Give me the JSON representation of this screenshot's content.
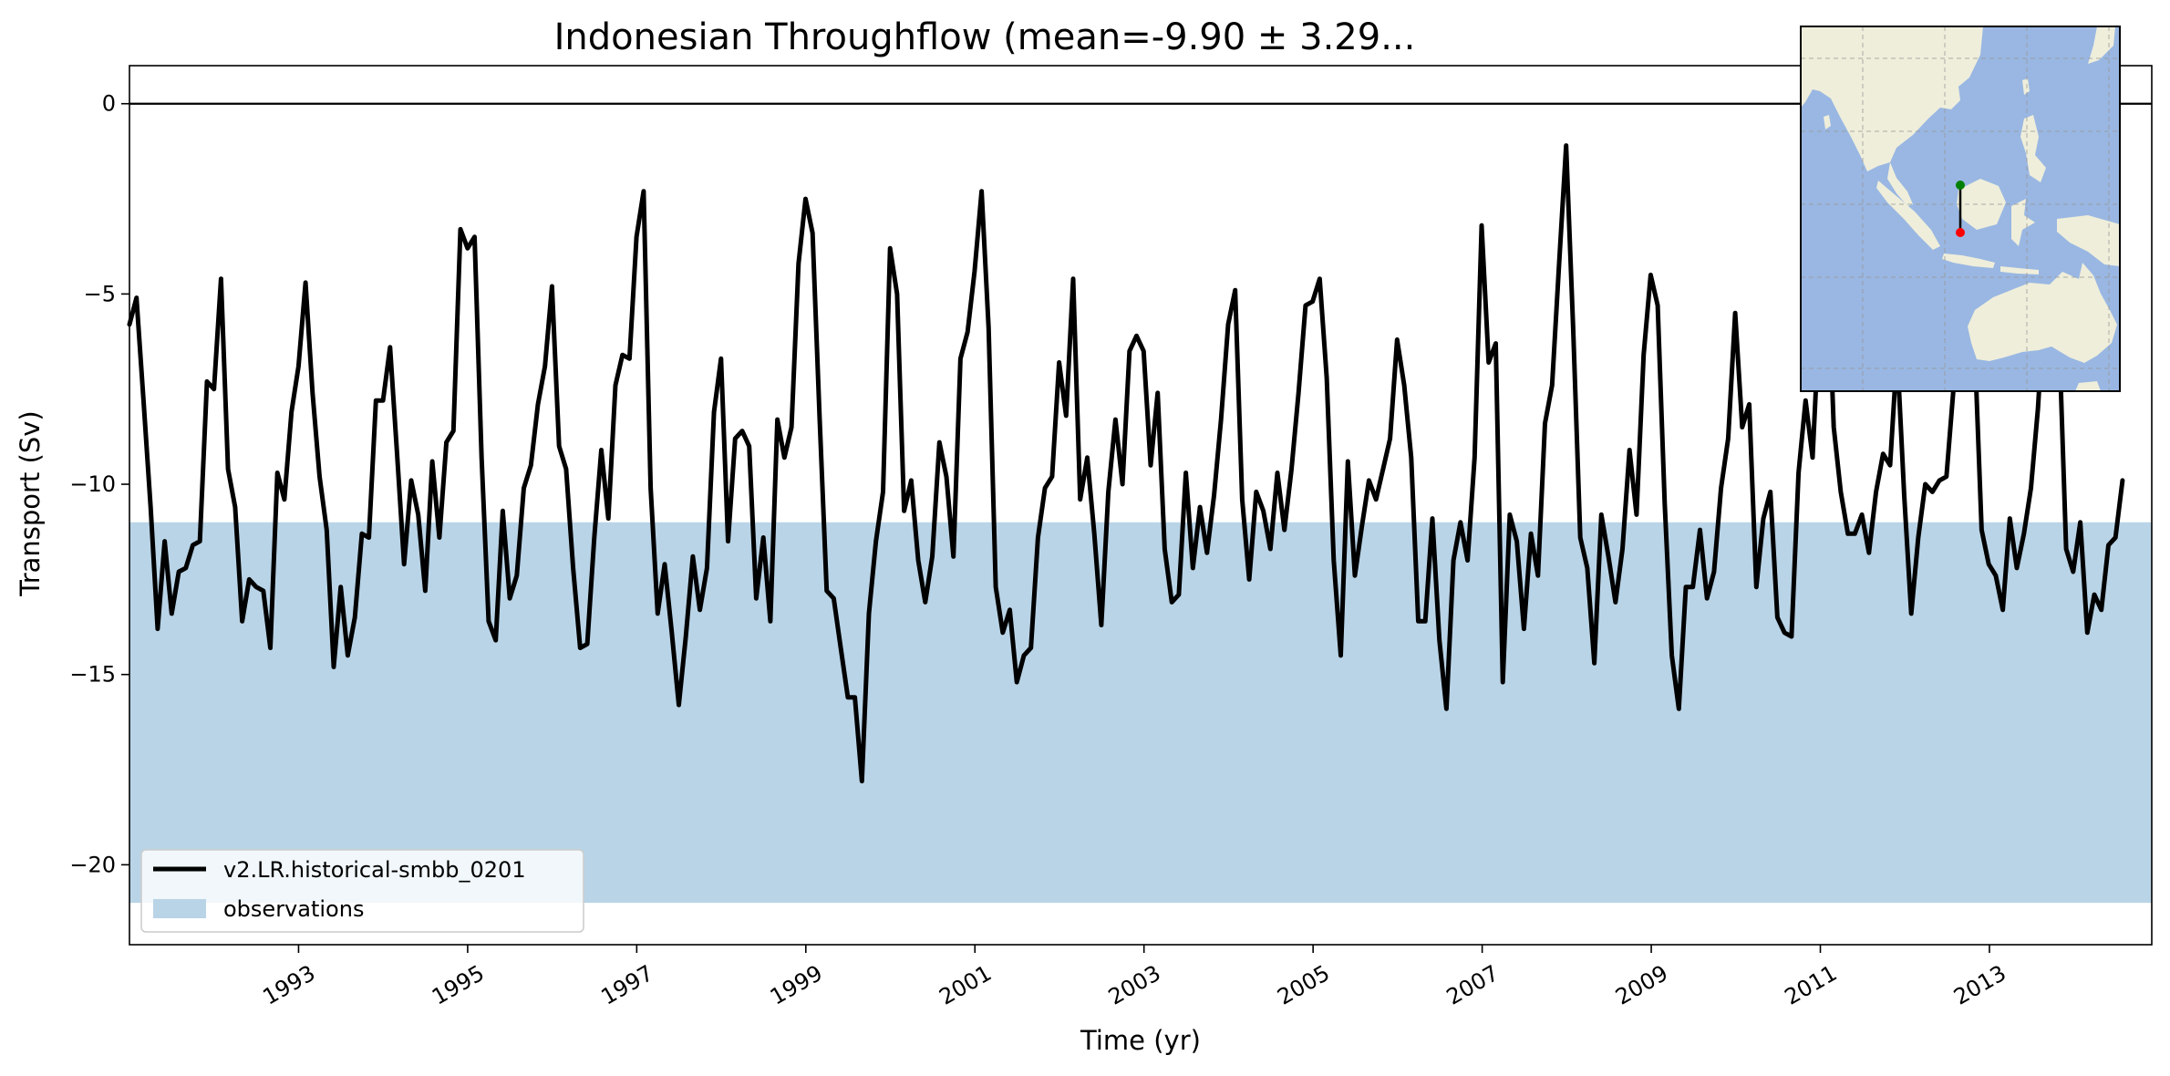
{
  "chart_data": {
    "type": "line",
    "title": "Indonesian Throughflow (mean=-9.90 ± 3.29...",
    "xlabel": "Time (yr)",
    "ylabel": "Transport (Sv)",
    "xlim": [
      1991.0,
      2014.92
    ],
    "ylim": [
      -22.1,
      1.0
    ],
    "x_ticks": [
      1993,
      1995,
      1997,
      1999,
      2001,
      2003,
      2005,
      2007,
      2009,
      2011,
      2013
    ],
    "y_ticks": [
      0,
      -5,
      -10,
      -15,
      -20
    ],
    "zero_line": 0,
    "observations_band": {
      "name": "observations",
      "range": [
        -21.0,
        -11.0
      ],
      "color": "#b9d4e7"
    },
    "legend_placement": "lower-left",
    "grid": false,
    "series": [
      {
        "name": "v2.LR.historical-smbb_0201",
        "color": "#000000",
        "x_start": 1991.0,
        "x_step": 0.0833,
        "values": [
          -5.8,
          -5.1,
          -7.8,
          -10.6,
          -13.8,
          -11.5,
          -13.4,
          -12.3,
          -12.2,
          -11.6,
          -11.5,
          -7.3,
          -7.5,
          -4.6,
          -9.6,
          -10.6,
          -13.6,
          -12.5,
          -12.7,
          -12.8,
          -14.3,
          -9.7,
          -10.4,
          -8.1,
          -6.9,
          -4.7,
          -7.6,
          -9.8,
          -11.2,
          -14.8,
          -12.7,
          -14.5,
          -13.5,
          -11.3,
          -11.4,
          -7.8,
          -7.8,
          -6.4,
          -9.2,
          -12.1,
          -9.9,
          -10.8,
          -12.8,
          -9.4,
          -11.4,
          -8.9,
          -8.6,
          -3.3,
          -3.8,
          -3.5,
          -9.3,
          -13.6,
          -14.1,
          -10.7,
          -13.0,
          -12.4,
          -10.1,
          -9.5,
          -7.9,
          -6.9,
          -4.8,
          -9.0,
          -9.6,
          -12.2,
          -14.3,
          -14.2,
          -11.4,
          -9.1,
          -10.9,
          -7.4,
          -6.6,
          -6.7,
          -3.5,
          -2.3,
          -10.1,
          -13.4,
          -12.1,
          -13.9,
          -15.8,
          -14.0,
          -11.9,
          -13.3,
          -12.2,
          -8.1,
          -6.7,
          -11.5,
          -8.8,
          -8.6,
          -9.0,
          -13.0,
          -11.4,
          -13.6,
          -8.3,
          -9.3,
          -8.5,
          -4.2,
          -2.5,
          -3.4,
          -8.3,
          -12.8,
          -13.0,
          -14.3,
          -15.6,
          -15.6,
          -17.8,
          -13.4,
          -11.5,
          -10.2,
          -3.8,
          -5.0,
          -10.7,
          -9.9,
          -12.0,
          -13.1,
          -11.9,
          -8.9,
          -9.8,
          -11.9,
          -6.7,
          -6.0,
          -4.4,
          -2.3,
          -5.9,
          -12.7,
          -13.9,
          -13.3,
          -15.2,
          -14.5,
          -14.3,
          -11.4,
          -10.1,
          -9.8,
          -6.8,
          -8.2,
          -4.6,
          -10.4,
          -9.3,
          -11.3,
          -13.7,
          -10.2,
          -8.3,
          -10.0,
          -6.5,
          -6.1,
          -6.5,
          -9.5,
          -7.6,
          -11.7,
          -13.1,
          -12.9,
          -9.7,
          -12.2,
          -10.6,
          -11.8,
          -10.3,
          -8.3,
          -5.8,
          -4.9,
          -10.4,
          -12.5,
          -10.2,
          -10.7,
          -11.7,
          -9.7,
          -11.2,
          -9.6,
          -7.6,
          -5.3,
          -5.2,
          -4.6,
          -7.2,
          -12.0,
          -14.5,
          -9.4,
          -12.4,
          -11.1,
          -9.9,
          -10.4,
          -9.6,
          -8.8,
          -6.2,
          -7.4,
          -9.3,
          -13.6,
          -13.6,
          -10.9,
          -14.1,
          -15.9,
          -12.0,
          -11.0,
          -12.0,
          -9.3,
          -3.2,
          -6.8,
          -6.3,
          -15.2,
          -10.8,
          -11.5,
          -13.8,
          -11.3,
          -12.4,
          -8.4,
          -7.4,
          -4.2,
          -1.1,
          -5.9,
          -11.4,
          -12.2,
          -14.7,
          -10.8,
          -11.9,
          -13.1,
          -11.7,
          -9.1,
          -10.8,
          -6.6,
          -4.5,
          -5.3,
          -10.5,
          -14.5,
          -15.9,
          -12.7,
          -12.7,
          -11.2,
          -13.0,
          -12.3,
          -10.1,
          -8.8,
          -5.5,
          -8.5,
          -7.9,
          -12.7,
          -10.9,
          -10.2,
          -13.5,
          -13.9,
          -14.0,
          -9.7,
          -7.8,
          -9.3,
          -5.4,
          -3.5,
          -8.5,
          -10.2,
          -11.3,
          -11.3,
          -10.8,
          -11.8,
          -10.2,
          -9.2,
          -9.5,
          -6.5,
          -10.3,
          -13.4,
          -11.4,
          -10.0,
          -10.2,
          -9.9,
          -9.8,
          -7.5,
          -4.2,
          -4.0,
          -6.3,
          -11.2,
          -12.1,
          -12.4,
          -13.3,
          -10.9,
          -12.2,
          -11.3,
          -10.1,
          -8.0,
          -4.9,
          -2.8,
          -6.1,
          -11.7,
          -12.3,
          -11.0,
          -13.9,
          -12.9,
          -13.3,
          -11.6,
          -11.4,
          -9.9
        ]
      },
      {
        "name": "observations"
      }
    ]
  },
  "inset_map": {
    "ocean_color": "#99b7e2",
    "land_color": "#efeedb",
    "endpoints": [
      "#008000",
      "#ff0000"
    ]
  }
}
